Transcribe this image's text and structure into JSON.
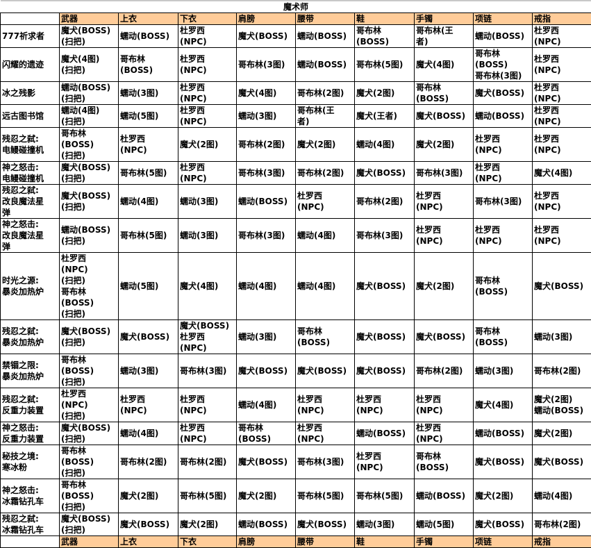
{
  "title": "魔术师",
  "header_color": "#FFCC99",
  "columns": [
    "武器",
    "上衣",
    "下衣",
    "肩膀",
    "腰带",
    "鞋",
    "手镯",
    "项链",
    "戒指"
  ],
  "rows": [
    {
      "name": "777祈求者",
      "cells": [
        "魔犬(BOSS)\n(扫把)",
        "蠕动(BOSS)",
        "杜罗西\n(NPC)",
        "魔犬(BOSS)",
        "蠕动(BOSS)",
        "哥布林\n(BOSS)",
        "哥布林(王\n者)",
        "蠕动(BOSS)",
        "杜罗西\n(NPC)"
      ]
    },
    {
      "name": "闪耀的遗迹",
      "cells": [
        "魔犬(4图)\n(扫把)",
        "哥布林\n(BOSS)",
        "杜罗西\n(NPC)",
        "哥布林(3图)",
        "蠕动(BOSS)",
        "哥布林(5图)",
        "魔犬(4图)",
        "哥布林\n(BOSS)\n哥布林(3图)",
        "杜罗西\n(NPC)"
      ]
    },
    {
      "name": "冰之残影",
      "cells": [
        "蠕动(BOSS)\n(扫把)",
        "蠕动(3图)",
        "杜罗西\n(NPC)",
        "魔犬(4图)",
        "哥布林(2图)",
        "魔犬(2图)",
        "哥布林\n(BOSS)",
        "魔犬(BOSS)",
        "杜罗西\n(NPC)"
      ]
    },
    {
      "name": "远古图书馆",
      "cells": [
        "蠕动(4图)\n(扫把)",
        "蠕动(5图)",
        "杜罗西\n(NPC)",
        "蠕动(3图)",
        "哥布林(王\n者)",
        "魔犬(王者)",
        "魔犬(BOSS)",
        "蠕动(BOSS)",
        "杜罗西\n(NPC)"
      ]
    },
    {
      "name": "残忍之弑:\n电鳗碰撞机",
      "cells": [
        "哥布林\n(BOSS)\n(扫把)",
        "杜罗西\n(NPC)",
        "魔犬(2图)",
        "哥布林(2图)",
        "魔犬(2图)",
        "蠕动(4图)",
        "魔犬(2图)",
        "杜罗西\n(NPC)",
        "杜罗西\n(NPC)"
      ]
    },
    {
      "name": "神之怒击:\n电鳗碰撞机",
      "cells": [
        "魔犬(BOSS)\n(扫把)",
        "哥布林(5图)",
        "杜罗西\n(NPC)",
        "哥布林(3图)",
        "哥布林(2图)",
        "魔犬(BOSS)",
        "哥布林(3图)",
        "杜罗西\n(NPC)",
        "魔犬(4图)"
      ]
    },
    {
      "name": "残忍之弑:\n改良魔法星\n弹",
      "cells": [
        "魔犬(BOSS)\n(扫把)",
        "蠕动(4图)",
        "蠕动(3图)",
        "蠕动(BOSS)",
        "杜罗西\n(NPC)",
        "哥布林(2图)",
        "杜罗西\n(NPC)",
        "哥布林(3图)",
        "杜罗西\n(NPC)"
      ]
    },
    {
      "name": "神之怒击:\n改良魔法星\n弹",
      "cells": [
        "蠕动(BOSS)\n(扫把)",
        "哥布林(5图)",
        "蠕动(3图)",
        "哥布林(3图)",
        "蠕动(4图)",
        "哥布林(3图)",
        "杜罗西\n(NPC)",
        "杜罗西\n(NPC)",
        "杜罗西\n(NPC)"
      ]
    },
    {
      "name": "时光之源:\n暴炎加热炉",
      "cells": [
        "杜罗西\n(NPC)\n(扫把)\n哥布林\n(BOSS)\n(扫把)",
        "蠕动(5图)",
        "魔犬(4图)",
        "蠕动(4图)",
        "蠕动(4图)",
        "魔犬(BOSS)",
        "魔犬(2图)",
        "哥布林\n(BOSS)",
        "魔犬(BOSS)"
      ]
    },
    {
      "name": "残忍之弑:\n暴炎加热炉",
      "cells": [
        "魔犬(BOSS)\n(扫把)",
        "魔犬(BOSS)",
        "魔犬(BOSS)\n杜罗西\n(NPC)",
        "蠕动(3图)",
        "哥布林\n(BOSS)",
        "魔犬(BOSS)",
        "魔犬(BOSS)",
        "哥布林\n(BOSS)",
        "蠕动(3图)"
      ]
    },
    {
      "name": "禁锢之限:\n暴炎加热炉",
      "cells": [
        "哥布林\n(BOSS)\n(扫把)",
        "蠕动(3图)",
        "哥布林(3图)",
        "魔犬(BOSS)",
        "魔犬(BOSS)",
        "魔犬(BOSS)",
        "哥布林(2图)",
        "蠕动(3图)",
        "哥布林(2图)"
      ]
    },
    {
      "name": "残忍之弑:\n反重力装置",
      "cells": [
        "杜罗西\n(NPC)\n(扫把)",
        "杜罗西\n(NPC)",
        "杜罗西\n(NPC)",
        "蠕动(4图)",
        "杜罗西\n(NPC)",
        "杜罗西\n(NPC)",
        "杜罗西\n(NPC)",
        "魔犬(4图)",
        "魔犬(2图)\n蠕动(BOSS)"
      ]
    },
    {
      "name": "神之怒击:\n反重力装置",
      "cells": [
        "魔犬(BOSS)\n(扫把)",
        "蠕动(4图)",
        "杜罗西\n(NPC)",
        "哥布林\n(BOSS)",
        "杜罗西\n(NPC)",
        "蠕动(BOSS)",
        "杜罗西\n(NPC)",
        "蠕动(BOSS)",
        "魔犬(2图)"
      ]
    },
    {
      "name": "秘技之境:\n寒冰粉",
      "cells": [
        "哥布林\n(BOSS)\n(扫把)",
        "哥布林(2图)",
        "哥布林(2图)",
        "魔犬(BOSS)",
        "哥布林(3图)",
        "杜罗西\n(NPC)",
        "哥布林\n(BOSS)",
        "魔犬(BOSS)",
        "魔犬(BOSS)"
      ]
    },
    {
      "name": "神之怒击:\n冰霜钻孔车",
      "cells": [
        "哥布林\n(BOSS)\n(扫把)",
        "魔犬(2图)",
        "哥布林(5图)",
        "魔犬(2图)",
        "哥布林(5图)",
        "哥布林(5图)",
        "蠕动(BOSS)",
        "魔犬(2图)",
        "蠕动(4图)"
      ]
    },
    {
      "name": "残忍之弑:\n冰霜钻孔车",
      "cells": [
        "魔犬(BOSS)\n(扫把)",
        "魔犬(BOSS)",
        "魔犬(2图)",
        "蠕动(BOSS)",
        "魔犬(BOSS)",
        "蠕动(3图)",
        "蠕动(5图)",
        "魔犬(BOSS)",
        "哥布林(2图)"
      ]
    }
  ]
}
